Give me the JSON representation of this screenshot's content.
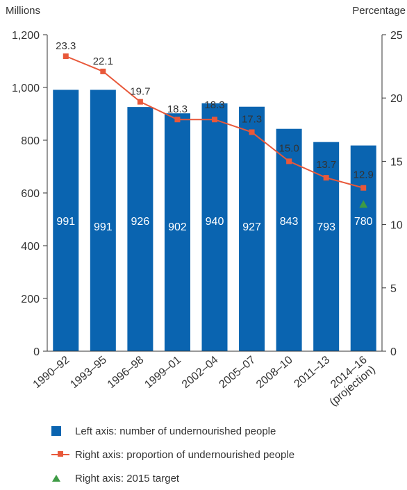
{
  "chart_data": {
    "type": "bar",
    "categories": [
      "1990–92",
      "1993–95",
      "1996–98",
      "1999–01",
      "2002–04",
      "2005–07",
      "2008–10",
      "2011–13",
      "2014–16"
    ],
    "category_sublabels": [
      "",
      "",
      "",
      "",
      "",
      "",
      "",
      "",
      "(projection)"
    ],
    "series": [
      {
        "name": "Left axis: number of undernourished people",
        "type": "bar",
        "axis": "left",
        "color": "#0a64b0",
        "values": [
          991,
          991,
          926,
          902,
          940,
          927,
          843,
          793,
          780
        ]
      },
      {
        "name": "Right axis: proportion of undernourished people",
        "type": "line",
        "axis": "right",
        "color": "#e8583a",
        "values": [
          23.3,
          22.1,
          19.7,
          18.3,
          18.3,
          17.3,
          15.0,
          13.7,
          12.9
        ]
      },
      {
        "name": "Right axis: 2015 target",
        "type": "scatter",
        "axis": "right",
        "color": "#3e9b45",
        "marker": "triangle",
        "category": "2014–16",
        "value": 11.6
      }
    ],
    "left_axis": {
      "label": "Millions",
      "range": [
        0,
        1200
      ],
      "ticks": [
        "0",
        "200",
        "400",
        "600",
        "800",
        "1,000",
        "1,200"
      ]
    },
    "right_axis": {
      "label": "Percentage",
      "range": [
        0,
        25
      ],
      "ticks": [
        "0",
        "5",
        "10",
        "15",
        "20",
        "25"
      ]
    },
    "grid": false,
    "legend_position": "bottom"
  },
  "legend": {
    "bar_label": "Left axis: number of undernourished people",
    "line_label": "Right axis: proportion of undernourished people",
    "target_label": "Right axis: 2015 target"
  }
}
